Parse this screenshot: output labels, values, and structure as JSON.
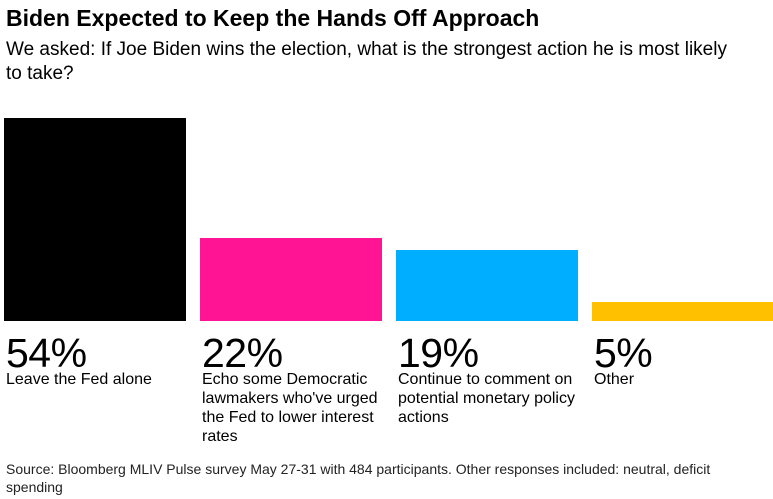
{
  "title": "Biden Expected to Keep the Hands Off Approach",
  "subtitle": "We asked: If Joe Biden wins the election, what is the strongest action he is most likely to take?",
  "source": "Source: Bloomberg MLIV Pulse survey May 27-31 with 484 participants. Other responses included: neutral, deficit spending",
  "chart_data": {
    "type": "bar",
    "title": "Biden Expected to Keep the Hands Off Approach",
    "subtitle": "We asked: If Joe Biden wins the election, what is the strongest action he is most likely to take?",
    "xlabel": "",
    "ylabel": "",
    "unit": "%",
    "ylim": [
      0,
      54
    ],
    "grid": false,
    "legend": "none",
    "categories": [
      "Leave the Fed alone",
      "Echo some Democratic lawmakers who've urged the Fed to lower interest rates",
      "Continue to comment on potential monetary policy actions",
      "Other"
    ],
    "values": [
      54,
      22,
      19,
      5
    ],
    "value_labels": [
      "54%",
      "22%",
      "19%",
      "5%"
    ],
    "colors": [
      "#000000",
      "#ff1493",
      "#00aeff",
      "#ffc000"
    ]
  }
}
